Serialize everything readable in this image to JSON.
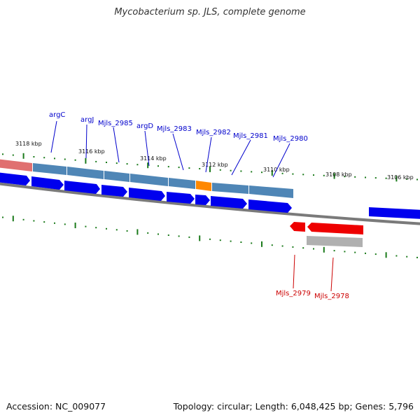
{
  "title": "Mycobacterium sp. JLS, complete genome",
  "footer": {
    "accession": "Accession: NC_009077",
    "summary": "Topology: circular; Length: 6,048,425 bp; Genes: 5,796"
  },
  "colors": {
    "forward_gene": "#0000ee",
    "reverse_gene": "#ee0000",
    "operon_bar": "#4a7fb0",
    "highlight_segment": "#ff8800",
    "ruler_ticks": "#1a7a1a",
    "backbone": "#808080",
    "forward_label": "#0000cc",
    "reverse_label": "#cc0000"
  },
  "kbp_labels": [
    "3118 kbp",
    "3116 kbp",
    "3114 kbp",
    "3112 kbp",
    "3110 kbp",
    "3108 kbp",
    "3106 kbp"
  ],
  "forward_gene_labels": [
    "argC",
    "argJ",
    "Mjls_2985",
    "argD",
    "Mjls_2983",
    "Mjls_2982",
    "Mjls_2981",
    "Mjls_2980"
  ],
  "reverse_gene_labels": [
    "Mjls_2979",
    "Mjls_2978"
  ]
}
